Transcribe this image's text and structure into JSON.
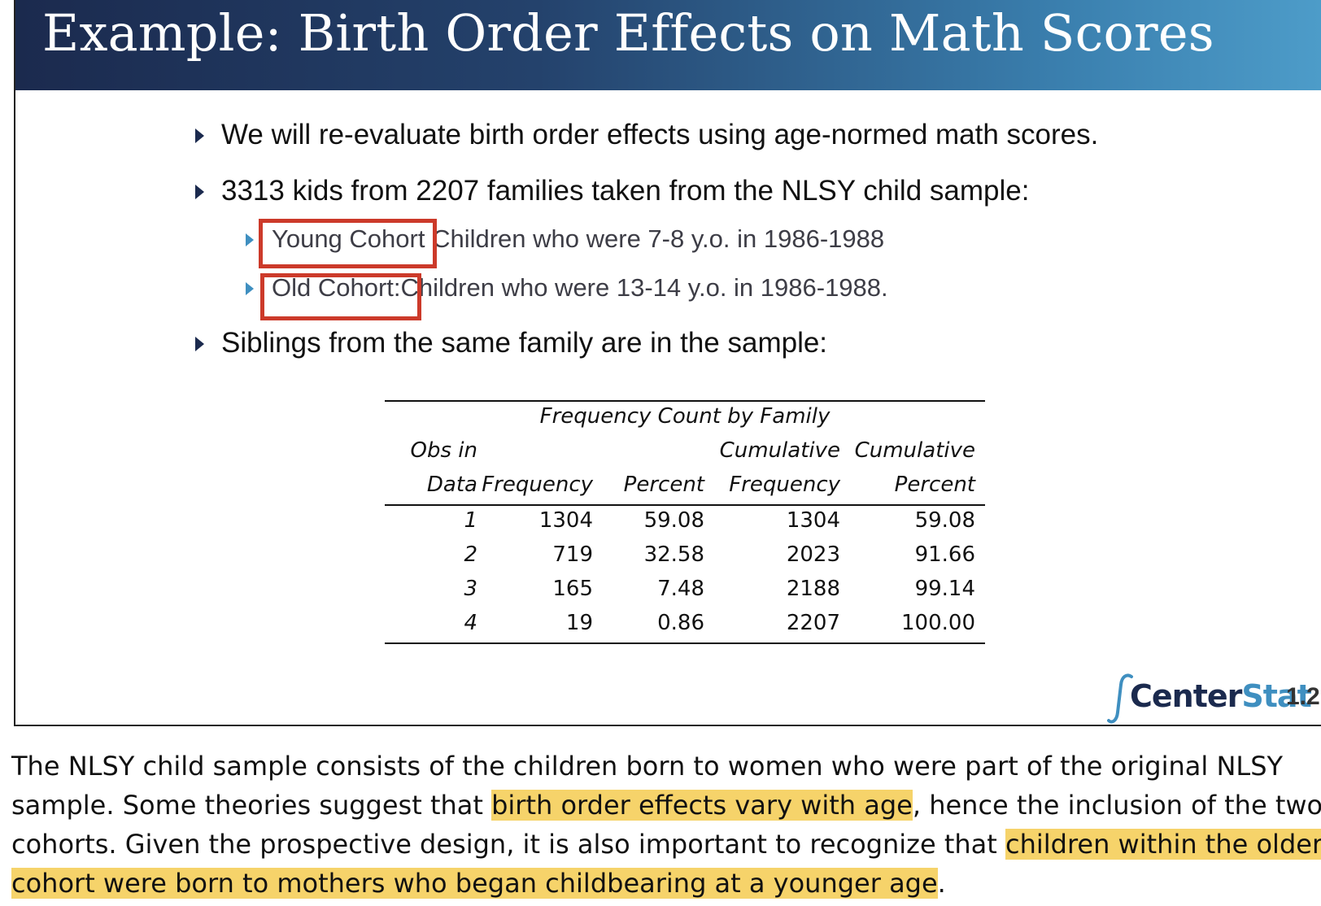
{
  "slide": {
    "title": "Example: Birth Order Effects on Math Scores",
    "bullets": [
      "We will re-evaluate birth order effects using age-normed math scores.",
      "3313 kids from 2207 families taken from the NLSY child sample:",
      "Siblings from the same family are in the sample:"
    ],
    "sub_bullets": [
      {
        "label": "Young Cohort",
        "text": "Children who were 7-8 y.o. in 1986-1988"
      },
      {
        "label": "Old Cohort:",
        "text": "Children who were 13-14 y.o. in 1986-1988."
      }
    ],
    "table": {
      "caption": "Frequency Count by Family",
      "header_line1": [
        "Obs in",
        "",
        "",
        "Cumulative",
        "Cumulative"
      ],
      "header_line2": [
        "Data",
        "Frequency",
        "Percent",
        "Frequency",
        "Percent"
      ],
      "rows": [
        [
          "1",
          "1304",
          "59.08",
          "1304",
          "59.08"
        ],
        [
          "2",
          "719",
          "32.58",
          "2023",
          "91.66"
        ],
        [
          "3",
          "165",
          "7.48",
          "2188",
          "99.14"
        ],
        [
          "4",
          "19",
          "0.86",
          "2207",
          "100.00"
        ]
      ]
    },
    "logo": {
      "part1": "Center",
      "part2": "Stat",
      "icon": "integral-sign-icon"
    },
    "page_number": "1.2",
    "colors": {
      "title_bar_start": "#1b2a4e",
      "title_bar_end": "#4d9cc9",
      "highlight_box": "#cc3a2a",
      "text_highlight": "#f6d36a"
    }
  },
  "notes": {
    "line1": "The NLSY child sample consists of the children born to women who were part of the original NLSY",
    "line2_a": "sample.  Some theories suggest that ",
    "line2_hl": "birth order effects vary with age",
    "line2_b": ", hence the inclusion of the two",
    "line3_a": "cohorts.  Given the prospective design, it is also important to recognize that ",
    "line3_hl": "children within the older",
    "line4_hl": "cohort were born to mothers who began childbearing at a younger age",
    "line4_b": "."
  }
}
